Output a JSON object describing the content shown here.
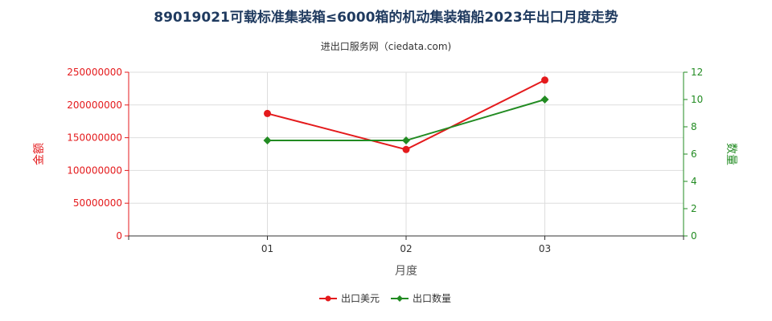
{
  "chart_data": {
    "type": "line",
    "title": "89019021可载标准集装箱≤6000箱的机动集装箱船2023年出口月度走势",
    "subtitle": "进出口服务网（ciedata.com)",
    "xlabel": "月度",
    "ylabel_left": "金额",
    "ylabel_right": "数量",
    "categories": [
      "01",
      "02",
      "03"
    ],
    "ylim_left": [
      0,
      250000000
    ],
    "yticks_left": [
      "0",
      "50000000",
      "100000000",
      "150000000",
      "200000000",
      "250000000"
    ],
    "ylim_right": [
      0,
      12
    ],
    "yticks_right": [
      "0",
      "2",
      "4",
      "6",
      "8",
      "10",
      "12"
    ],
    "grid": true,
    "legend_position": "bottom",
    "series": [
      {
        "name": "出口美元",
        "axis": "left",
        "color": "#e41a1c",
        "marker": "circle",
        "values": [
          187000000,
          132000000,
          238000000
        ]
      },
      {
        "name": "出口数量",
        "axis": "right",
        "color": "#228b22",
        "marker": "diamond",
        "values": [
          7,
          7,
          10
        ]
      }
    ]
  }
}
